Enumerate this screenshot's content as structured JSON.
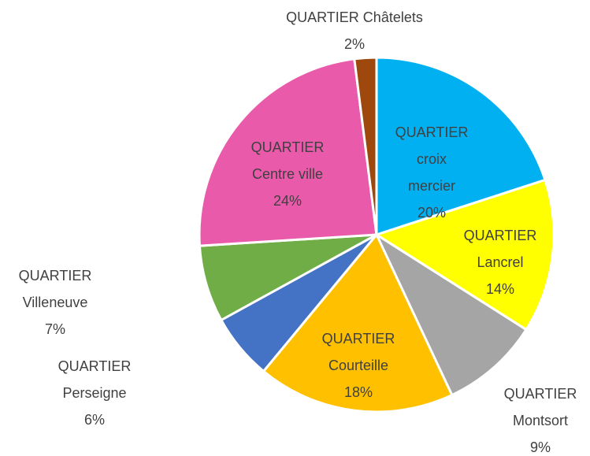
{
  "chart_data": {
    "type": "pie",
    "categories": [
      "QUARTIER croix mercier",
      "QUARTIER Lancrel",
      "QUARTIER Montsort",
      "QUARTIER Courteille",
      "QUARTIER Perseigne",
      "QUARTIER Villeneuve",
      "QUARTIER Centre ville",
      "QUARTIER Châtelets"
    ],
    "values": [
      20,
      14,
      9,
      18,
      6,
      7,
      24,
      2
    ],
    "value_labels": [
      "20%",
      "14%",
      "9%",
      "18%",
      "6%",
      "7%",
      "24%",
      "2%"
    ],
    "colors": [
      "#00b0f0",
      "#ffff00",
      "#a5a5a5",
      "#ffc000",
      "#4472c4",
      "#70ad47",
      "#ea5aaa",
      "#9e480e"
    ]
  }
}
